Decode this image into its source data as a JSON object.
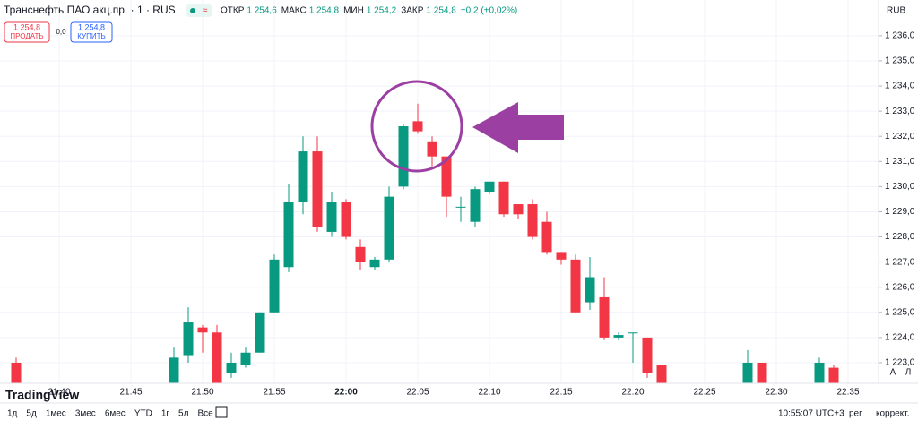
{
  "chart_data": {
    "type": "candlestick",
    "x": [
      "21:37",
      "21:48",
      "21:49",
      "21:50",
      "21:51",
      "21:52",
      "21:53",
      "21:54",
      "21:55",
      "21:56",
      "21:57",
      "21:58",
      "21:59",
      "22:00",
      "22:01",
      "22:02",
      "22:03",
      "22:04",
      "22:05",
      "22:06",
      "22:07",
      "22:08",
      "22:09",
      "22:10",
      "22:11",
      "22:12",
      "22:13",
      "22:14",
      "22:15",
      "22:16",
      "22:17",
      "22:18",
      "22:19",
      "22:20",
      "22:21",
      "22:22",
      "22:28",
      "22:29",
      "22:33",
      "22:34"
    ],
    "open": [
      1223.0,
      1222.2,
      1223.3,
      1224.4,
      1224.2,
      1222.6,
      1222.9,
      1223.4,
      1225.0,
      1226.8,
      1229.4,
      1231.4,
      1228.2,
      1229.4,
      1227.6,
      1226.8,
      1227.1,
      1230.0,
      1232.6,
      1231.8,
      1231.2,
      1229.2,
      1228.6,
      1229.8,
      1230.2,
      1229.3,
      1229.3,
      1228.6,
      1227.4,
      1227.1,
      1225.4,
      1225.6,
      1224.0,
      1224.2,
      1224.0,
      1222.9,
      1222.2,
      1223.0,
      1222.2,
      1222.8
    ],
    "high": [
      1223.2,
      1223.6,
      1225.2,
      1224.5,
      1224.5,
      1223.4,
      1223.6,
      1225.0,
      1227.3,
      1230.1,
      1232.0,
      1232.0,
      1229.8,
      1229.5,
      1227.9,
      1227.2,
      1230.0,
      1232.5,
      1233.3,
      1232.0,
      1231.2,
      1229.6,
      1230.0,
      1230.2,
      1230.2,
      1229.3,
      1229.5,
      1229.0,
      1227.4,
      1227.3,
      1227.2,
      1226.4,
      1224.2,
      1224.2,
      1224.0,
      1222.9,
      1223.5,
      1223.0,
      1223.2,
      1222.9
    ],
    "low": [
      1221.8,
      1221.8,
      1223.0,
      1223.4,
      1221.8,
      1222.4,
      1222.8,
      1223.4,
      1225.0,
      1226.6,
      1228.9,
      1228.2,
      1228.0,
      1227.9,
      1226.7,
      1226.7,
      1227.0,
      1229.9,
      1232.1,
      1230.8,
      1228.8,
      1228.6,
      1228.4,
      1229.7,
      1228.8,
      1228.7,
      1227.9,
      1227.3,
      1226.9,
      1225.0,
      1225.1,
      1223.9,
      1223.9,
      1223.0,
      1222.4,
      1221.8,
      1221.8,
      1221.8,
      1221.8,
      1221.8
    ],
    "close": [
      1221.9,
      1223.2,
      1224.6,
      1224.2,
      1221.9,
      1223.0,
      1223.4,
      1225.0,
      1227.1,
      1229.4,
      1231.4,
      1228.4,
      1229.4,
      1228.0,
      1227.0,
      1227.1,
      1229.6,
      1232.4,
      1232.2,
      1231.2,
      1229.6,
      1229.2,
      1229.9,
      1230.2,
      1228.9,
      1228.9,
      1228.0,
      1227.4,
      1227.1,
      1225.0,
      1226.4,
      1224.0,
      1224.1,
      1224.2,
      1222.6,
      1221.9,
      1223.0,
      1221.9,
      1223.0,
      1221.9
    ],
    "up_color": "#089981",
    "down_color": "#f23645",
    "ylim": [
      1222.18,
      1237.42
    ],
    "yticks": [
      {
        "value": 1236,
        "label": "1 236,0"
      },
      {
        "value": 1235,
        "label": "1 235,0"
      },
      {
        "value": 1234,
        "label": "1 234,0"
      },
      {
        "value": 1233,
        "label": "1 233,0"
      },
      {
        "value": 1232,
        "label": "1 232,0"
      },
      {
        "value": 1231,
        "label": "1 231,0"
      },
      {
        "value": 1230,
        "label": "1 230,0"
      },
      {
        "value": 1229,
        "label": "1 229,0"
      },
      {
        "value": 1228,
        "label": "1 228,0"
      },
      {
        "value": 1227,
        "label": "1 227,0"
      },
      {
        "value": 1226,
        "label": "1 226,0"
      },
      {
        "value": 1225,
        "label": "1 225,0"
      },
      {
        "value": 1224,
        "label": "1 224,0"
      },
      {
        "value": 1223,
        "label": "1 223,0"
      }
    ],
    "xticks": [
      "21:40",
      "21:45",
      "21:50",
      "21:55",
      "22:00",
      "22:05",
      "22:10",
      "22:15",
      "22:20",
      "22:25",
      "22:30",
      "22:35"
    ]
  },
  "ui": {
    "title": "Транснефть ПАО акц.пр. · 1 · RUS",
    "ohlc": [
      [
        "ОТКР",
        "1 254,6"
      ],
      [
        "МАКС",
        "1 254,8"
      ],
      [
        "МИН",
        "1 254,2"
      ],
      [
        "ЗАКР",
        "1 254,8"
      ]
    ],
    "change": "+0,2 (+0,02%)",
    "sell_price": "1 254,8",
    "sell": "ПРОДАТЬ",
    "spread": "0,0",
    "buy_price": "1 254,8",
    "buy": "КУПИТЬ",
    "currency": "RUB",
    "logo": "TradingView",
    "ranges": [
      "1д",
      "5д",
      "1мес",
      "3мес",
      "6мес",
      "YTD",
      "1г",
      "5л",
      "Все"
    ],
    "clock": "10:55:07 UTC+3",
    "session": "рег",
    "adjust": "коррект.",
    "auto": "A",
    "log": "Л"
  }
}
